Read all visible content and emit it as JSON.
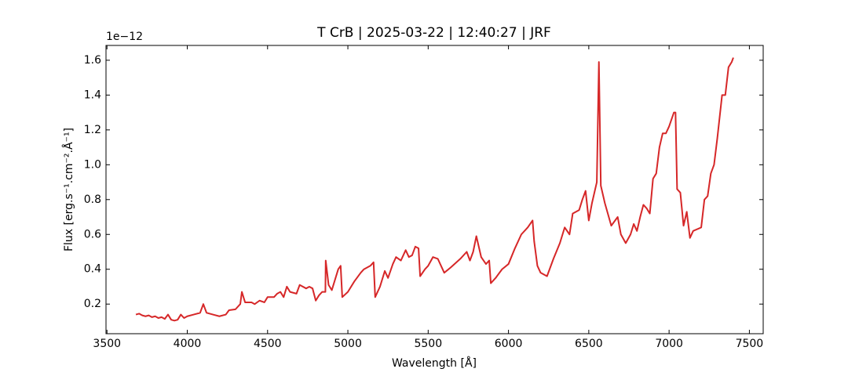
{
  "chart_data": {
    "type": "line",
    "title": "T CrB | 2025-03-22 | 12:40:27 | JRF",
    "x_label": "Wavelength [Å]",
    "y_label": "Flux [erg.s⁻¹.cm⁻².Å⁻¹]",
    "y_offset_label": "1e−12",
    "color": "#d62728",
    "x": [
      3680,
      3700,
      3720,
      3740,
      3760,
      3780,
      3800,
      3820,
      3840,
      3860,
      3880,
      3900,
      3920,
      3940,
      3960,
      3980,
      4000,
      4040,
      4080,
      4100,
      4120,
      4160,
      4200,
      4240,
      4260,
      4300,
      4330,
      4340,
      4360,
      4400,
      4420,
      4450,
      4480,
      4500,
      4540,
      4560,
      4580,
      4600,
      4620,
      4640,
      4680,
      4700,
      4740,
      4760,
      4780,
      4800,
      4820,
      4840,
      4860,
      4862,
      4880,
      4900,
      4920,
      4940,
      4955,
      4965,
      5000,
      5040,
      5080,
      5100,
      5140,
      5160,
      5170,
      5200,
      5230,
      5250,
      5280,
      5300,
      5330,
      5360,
      5380,
      5400,
      5420,
      5440,
      5450,
      5480,
      5500,
      5530,
      5560,
      5600,
      5640,
      5700,
      5740,
      5760,
      5780,
      5800,
      5830,
      5860,
      5880,
      5890,
      5920,
      5960,
      6000,
      6040,
      6080,
      6120,
      6150,
      6160,
      6180,
      6200,
      6240,
      6280,
      6320,
      6350,
      6380,
      6400,
      6440,
      6460,
      6480,
      6500,
      6520,
      6550,
      6563,
      6575,
      6600,
      6640,
      6680,
      6700,
      6730,
      6760,
      6780,
      6800,
      6820,
      6840,
      6860,
      6880,
      6900,
      6920,
      6940,
      6960,
      6980,
      7000,
      7030,
      7040,
      7050,
      7070,
      7090,
      7110,
      7130,
      7150,
      7200,
      7220,
      7240,
      7260,
      7280,
      7300,
      7330,
      7350,
      7370,
      7390,
      7400
    ],
    "values": [
      0.14,
      0.145,
      0.135,
      0.13,
      0.135,
      0.125,
      0.13,
      0.12,
      0.125,
      0.115,
      0.14,
      0.11,
      0.105,
      0.11,
      0.14,
      0.12,
      0.13,
      0.14,
      0.15,
      0.2,
      0.15,
      0.14,
      0.13,
      0.14,
      0.165,
      0.17,
      0.2,
      0.27,
      0.21,
      0.21,
      0.2,
      0.22,
      0.21,
      0.24,
      0.24,
      0.26,
      0.27,
      0.24,
      0.3,
      0.27,
      0.26,
      0.31,
      0.29,
      0.3,
      0.29,
      0.22,
      0.25,
      0.27,
      0.27,
      0.45,
      0.31,
      0.28,
      0.34,
      0.4,
      0.42,
      0.24,
      0.27,
      0.33,
      0.38,
      0.4,
      0.42,
      0.44,
      0.24,
      0.3,
      0.39,
      0.35,
      0.43,
      0.47,
      0.45,
      0.51,
      0.47,
      0.48,
      0.53,
      0.52,
      0.36,
      0.4,
      0.42,
      0.47,
      0.46,
      0.38,
      0.41,
      0.46,
      0.5,
      0.45,
      0.5,
      0.59,
      0.47,
      0.43,
      0.45,
      0.32,
      0.35,
      0.4,
      0.43,
      0.52,
      0.6,
      0.64,
      0.68,
      0.56,
      0.42,
      0.38,
      0.36,
      0.46,
      0.55,
      0.64,
      0.6,
      0.72,
      0.74,
      0.8,
      0.85,
      0.68,
      0.78,
      0.9,
      1.59,
      0.88,
      0.78,
      0.65,
      0.7,
      0.6,
      0.55,
      0.6,
      0.66,
      0.62,
      0.7,
      0.77,
      0.75,
      0.72,
      0.92,
      0.95,
      1.1,
      1.18,
      1.18,
      1.22,
      1.3,
      1.3,
      0.86,
      0.84,
      0.65,
      0.73,
      0.58,
      0.62,
      0.64,
      0.8,
      0.82,
      0.95,
      1.0,
      1.15,
      1.4,
      1.4,
      1.56,
      1.59,
      1.615
    ],
    "xlim": [
      3494,
      7586
    ],
    "xticks": [
      3500,
      4000,
      4500,
      5000,
      5500,
      6000,
      6500,
      7000,
      7500
    ],
    "ylim": [
      0.03,
      1.685
    ],
    "yticks": [
      0.2,
      0.4,
      0.6,
      0.8,
      {
        "value": 1,
        "label": "1.0"
      },
      1.2,
      1.4,
      1.6
    ]
  }
}
